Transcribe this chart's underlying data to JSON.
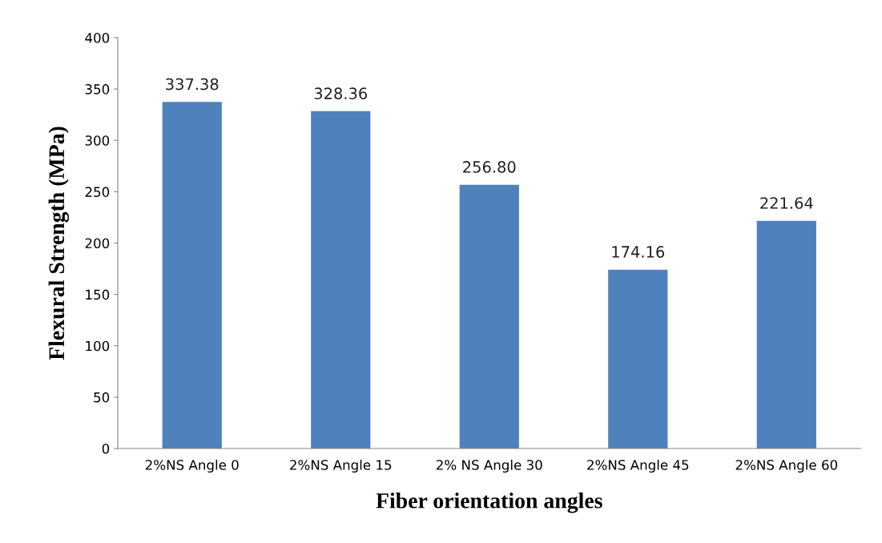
{
  "chart_data": {
    "type": "bar",
    "xlabel": "Fiber orientation angles",
    "ylabel": "Flexural Strength (MPa)",
    "categories": [
      "2%NS Angle 0",
      "2%NS Angle 15",
      "2% NS Angle 30",
      "2%NS Angle 45",
      "2%NS Angle 60"
    ],
    "values": [
      337.38,
      328.36,
      256.8,
      174.16,
      221.64
    ],
    "value_labels": [
      "337.38",
      "328.36",
      "256.80",
      "174.16",
      "221.64"
    ],
    "color": "#4f81bd",
    "ylim": [
      0,
      400
    ],
    "yticks": [
      0,
      50,
      100,
      150,
      200,
      250,
      300,
      350,
      400
    ],
    "grid": false,
    "legend": false
  }
}
